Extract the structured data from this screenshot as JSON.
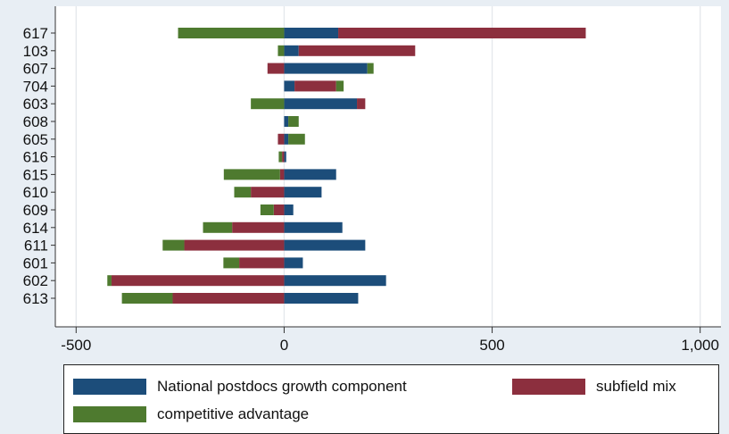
{
  "chart_data": {
    "type": "bar",
    "orientation": "horizontal",
    "stacked": "diverging",
    "categories": [
      "617",
      "103",
      "607",
      "704",
      "603",
      "608",
      "605",
      "616",
      "615",
      "610",
      "609",
      "614",
      "611",
      "601",
      "602",
      "613"
    ],
    "series": [
      {
        "name": "National postdocs growth component",
        "color": "#1c4d7a",
        "values": [
          130,
          35,
          200,
          25,
          175,
          10,
          10,
          5,
          125,
          90,
          22,
          140,
          195,
          45,
          245,
          178
        ]
      },
      {
        "name": "subfield mix",
        "color": "#8c2f3e",
        "values": [
          595,
          280,
          -40,
          100,
          20,
          0,
          -15,
          -5,
          -10,
          -80,
          -25,
          -125,
          -240,
          -108,
          -415,
          -268
        ]
      },
      {
        "name": "competitive advantage",
        "color": "#4e7a2f",
        "values": [
          -255,
          -15,
          15,
          18,
          -80,
          25,
          40,
          -8,
          -135,
          -40,
          -32,
          -70,
          -52,
          -38,
          -10,
          -122
        ]
      }
    ],
    "xlim": [
      -550,
      1050
    ],
    "xticks": [
      -500,
      0,
      500,
      1000
    ],
    "xtick_labels": [
      "-500",
      "0",
      "500",
      "1,000"
    ],
    "grid": "vertical",
    "legend_position": "bottom",
    "title": "",
    "xlabel": "",
    "ylabel": ""
  }
}
